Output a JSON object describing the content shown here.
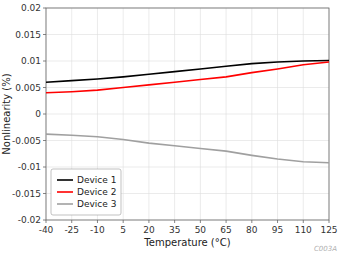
{
  "chart_data": {
    "type": "line",
    "xlabel": "Temperature (°C)",
    "ylabel": "Nonlinearity (%)",
    "x": [
      -40,
      -25,
      -10,
      5,
      20,
      35,
      50,
      65,
      80,
      95,
      110,
      125
    ],
    "series": [
      {
        "name": "Device 1",
        "color": "#000000",
        "values": [
          0.006,
          0.0063,
          0.0066,
          0.007,
          0.0075,
          0.008,
          0.0085,
          0.009,
          0.0095,
          0.0098,
          0.01,
          0.0101
        ]
      },
      {
        "name": "Device 2",
        "color": "#ff0000",
        "values": [
          0.004,
          0.0042,
          0.0045,
          0.005,
          0.0055,
          0.006,
          0.0065,
          0.007,
          0.0078,
          0.0085,
          0.0093,
          0.0098
        ]
      },
      {
        "name": "Device 3",
        "color": "#a0a0a0",
        "values": [
          -0.0038,
          -0.004,
          -0.0043,
          -0.0048,
          -0.0055,
          -0.006,
          -0.0065,
          -0.007,
          -0.0078,
          -0.0085,
          -0.009,
          -0.0092
        ]
      }
    ],
    "xlim": [
      -40,
      125
    ],
    "ylim": [
      -0.02,
      0.02
    ],
    "xticks": [
      -40,
      -25,
      -10,
      5,
      20,
      35,
      50,
      65,
      80,
      95,
      110,
      125
    ],
    "yticks": [
      -0.02,
      -0.015,
      -0.01,
      -0.005,
      0,
      0.005,
      0.01,
      0.015,
      0.02
    ],
    "grid": true,
    "legend": "lower left",
    "annotations": [
      "C003A"
    ]
  }
}
